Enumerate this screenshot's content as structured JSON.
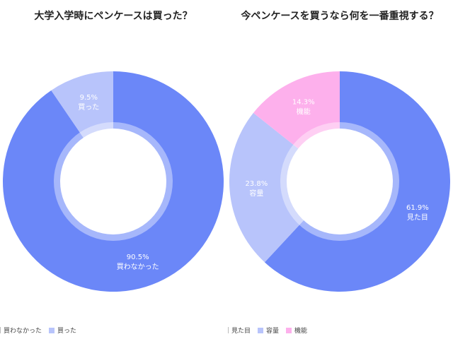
{
  "chart_data": [
    {
      "type": "pie",
      "donut": true,
      "title": "大学入学時にペンケースは買った？",
      "labels": [
        "買わなかった",
        "買った"
      ],
      "values": [
        90.5,
        9.5
      ],
      "value_labels": [
        "90.5%",
        "9.5%"
      ],
      "colors": [
        "#6b87f8",
        "#b8c4fb"
      ],
      "legend_position": "bottom-left"
    },
    {
      "type": "pie",
      "donut": true,
      "title": "今ペンケースを買うなら何を一番重視する？",
      "labels": [
        "見た目",
        "容量",
        "機能"
      ],
      "values": [
        61.9,
        23.8,
        14.3
      ],
      "value_labels": [
        "61.9%",
        "23.8%",
        "14.3%"
      ],
      "colors": [
        "#6b87f8",
        "#b8c4fb",
        "#fdb0ec"
      ],
      "legend_position": "bottom-left"
    }
  ]
}
